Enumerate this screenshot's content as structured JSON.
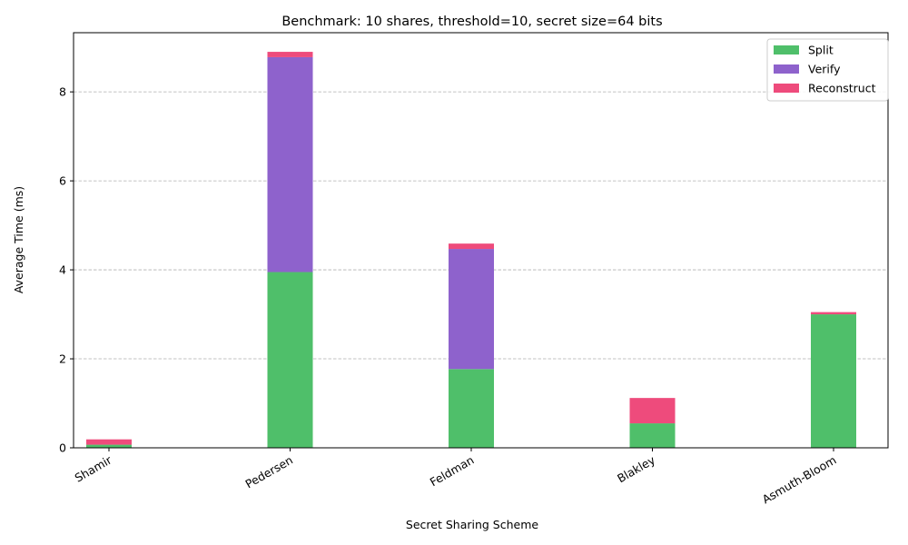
{
  "chart_data": {
    "type": "bar",
    "stacked": true,
    "title": "Benchmark: 10 shares, threshold=10, secret size=64 bits",
    "xlabel": "Secret Sharing Scheme",
    "ylabel": "Average Time (ms)",
    "categories": [
      "Shamir",
      "Pedersen",
      "Feldman",
      "Blakley",
      "Asmuth-Bloom"
    ],
    "ylim": [
      0,
      9.33
    ],
    "yticks": [
      0,
      2,
      4,
      6,
      8
    ],
    "grid": "y-dashed",
    "legend_position": "top-right",
    "series": [
      {
        "name": "Split",
        "color": "#4fbf6a",
        "values": [
          0.07,
          3.95,
          1.77,
          0.55,
          3.0
        ]
      },
      {
        "name": "Verify",
        "color": "#8e62cc",
        "values": [
          0.0,
          4.83,
          2.7,
          0.0,
          0.0
        ]
      },
      {
        "name": "Reconstruct",
        "color": "#ee4b7c",
        "values": [
          0.12,
          0.12,
          0.12,
          0.57,
          0.05
        ]
      }
    ]
  }
}
